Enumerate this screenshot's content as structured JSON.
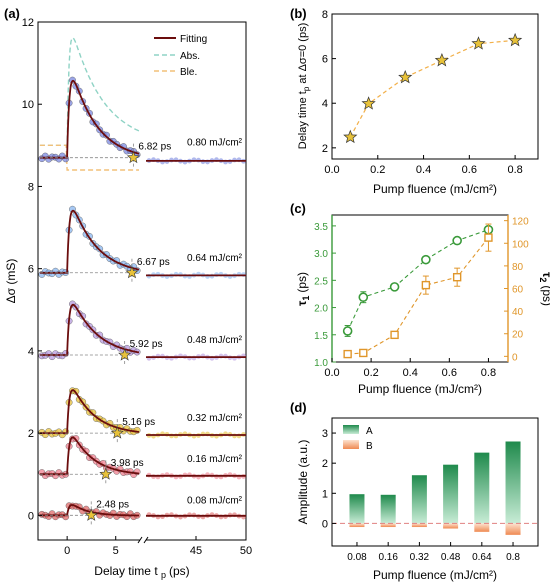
{
  "panel_labels": [
    "(a)",
    "(b)",
    "(c)",
    "(d)"
  ],
  "chart_data": [
    {
      "panel": "(a)",
      "type": "line",
      "xlabel": "Delay time t",
      "xlabel_sub": "p",
      "xlabel_unit": "(ps)",
      "ylabel": "Δσ (mS)",
      "x_ticks_left": [
        "0",
        "5"
      ],
      "x_ticks_right": [
        "45",
        "50"
      ],
      "x_left_range": [
        -3,
        7.5
      ],
      "x_right_range": [
        40,
        50
      ],
      "ylim": [
        -0.6,
        12
      ],
      "y_ticks": [
        "0",
        "2",
        "4",
        "6",
        "8",
        "10",
        "12"
      ],
      "legend": [
        {
          "label": "Fitting",
          "color": "#6b0d0d",
          "style": "solid"
        },
        {
          "label": "Abs.",
          "color": "#8fd3c5",
          "style": "dashed"
        },
        {
          "label": "Ble.",
          "color": "#f2c079",
          "style": "dashed"
        }
      ],
      "traces": [
        {
          "fluence": "0.08 mJ/cm²",
          "offset": 0.0,
          "amp": 0.4,
          "tau": 1.6,
          "dot_color": "#e06a6a",
          "star_t": 2.48,
          "star_label": "2.48 ps"
        },
        {
          "fluence": "0.16 mJ/cm²",
          "offset": 1.0,
          "amp": 1.3,
          "tau": 2.2,
          "dot_color": "#f08090",
          "star_t": 3.98,
          "star_label": "3.98 ps"
        },
        {
          "fluence": "0.32 mJ/cm²",
          "offset": 2.0,
          "amp": 1.5,
          "tau": 2.3,
          "dot_color": "#e8c23a",
          "star_t": 5.16,
          "star_label": "5.16 ps"
        },
        {
          "fluence": "0.48 mJ/cm²",
          "offset": 3.9,
          "amp": 1.7,
          "tau": 2.6,
          "dot_color": "#b79be0",
          "star_t": 5.92,
          "star_label": "5.92 ps"
        },
        {
          "fluence": "0.64 mJ/cm²",
          "offset": 5.9,
          "amp": 2.1,
          "tau": 2.6,
          "dot_color": "#8ab7f0",
          "star_t": 6.67,
          "star_label": "6.67 ps"
        },
        {
          "fluence": "0.80 mJ/cm²",
          "offset": 8.7,
          "amp": 2.6,
          "tau": 2.6,
          "dot_color": "#7b88e0",
          "star_t": 6.82,
          "star_label": "6.82 ps"
        }
      ]
    },
    {
      "panel": "(b)",
      "type": "scatter",
      "xlabel": "Pump fluence (mJ/cm²)",
      "ylabel": "Delay time t",
      "ylabel_sub": "p",
      "ylabel_rest": " at Δσ=0 (ps)",
      "x": [
        0.08,
        0.16,
        0.32,
        0.48,
        0.64,
        0.8
      ],
      "y": [
        2.48,
        3.98,
        5.16,
        5.92,
        6.67,
        6.82
      ],
      "xlim": [
        0,
        0.9
      ],
      "ylim": [
        1.5,
        8
      ],
      "x_ticks": [
        "0.0",
        "0.2",
        "0.4",
        "0.6",
        "0.8"
      ],
      "y_ticks": [
        "2",
        "4",
        "6",
        "8"
      ],
      "marker_color": "#e8c23a",
      "line_color": "#f2b04a"
    },
    {
      "panel": "(c)",
      "type": "scatter",
      "xlabel": "Pump fluence (mJ/cm²)",
      "x": [
        0.08,
        0.16,
        0.32,
        0.48,
        0.64,
        0.8
      ],
      "xlim": [
        0,
        0.9
      ],
      "x_ticks": [
        "0.0",
        "0.2",
        "0.4",
        "0.6",
        "0.8"
      ],
      "series": [
        {
          "name": "τ1",
          "axis": "left",
          "ylabel": "τ",
          "ylabel_sub": "1",
          "ylabel_unit": "(ps)",
          "values": [
            1.57,
            2.19,
            2.38,
            2.88,
            3.23,
            3.43
          ],
          "errors": [
            0.1,
            0.1,
            0.04,
            0.05,
            0.04,
            0.04
          ],
          "color": "#3a9a3a",
          "ylim": [
            1.0,
            3.7
          ],
          "y_ticks": [
            "1.0",
            "1.5",
            "2.0",
            "2.5",
            "3.0",
            "3.5"
          ],
          "y_tick_values": [
            1.0,
            1.5,
            2.0,
            2.5,
            3.0,
            3.5
          ]
        },
        {
          "name": "τ2",
          "axis": "right",
          "ylabel": "τ",
          "ylabel_sub": "2",
          "ylabel_unit": "(ps)",
          "values": [
            2,
            3,
            19,
            63,
            70,
            105
          ],
          "errors": [
            2,
            2,
            2,
            8,
            8,
            12
          ],
          "color": "#e0962a",
          "ylim": [
            -5,
            125
          ],
          "y_ticks": [
            "0",
            "20",
            "40",
            "60",
            "80",
            "100",
            "120"
          ],
          "y_tick_values": [
            0,
            20,
            40,
            60,
            80,
            100,
            120
          ]
        }
      ]
    },
    {
      "panel": "(d)",
      "type": "bar",
      "xlabel": "Pump fluence (mJ/cm²)",
      "ylabel": "Amplitude (a.u.)",
      "categories": [
        "0.08",
        "0.16",
        "0.32",
        "0.48",
        "0.64",
        "0.8"
      ],
      "series": [
        {
          "name": "A",
          "values": [
            0.97,
            0.95,
            1.6,
            1.95,
            2.35,
            2.72
          ],
          "color": "#2e9a5a"
        },
        {
          "name": "B",
          "values": [
            -0.12,
            -0.12,
            -0.12,
            -0.17,
            -0.28,
            -0.38
          ],
          "color": "#ef8a52"
        }
      ],
      "ylim": [
        -0.75,
        3.5
      ],
      "y_ticks": [
        "0",
        "1",
        "2",
        "3"
      ],
      "y_tick_values": [
        0,
        1,
        2,
        3
      ]
    }
  ]
}
